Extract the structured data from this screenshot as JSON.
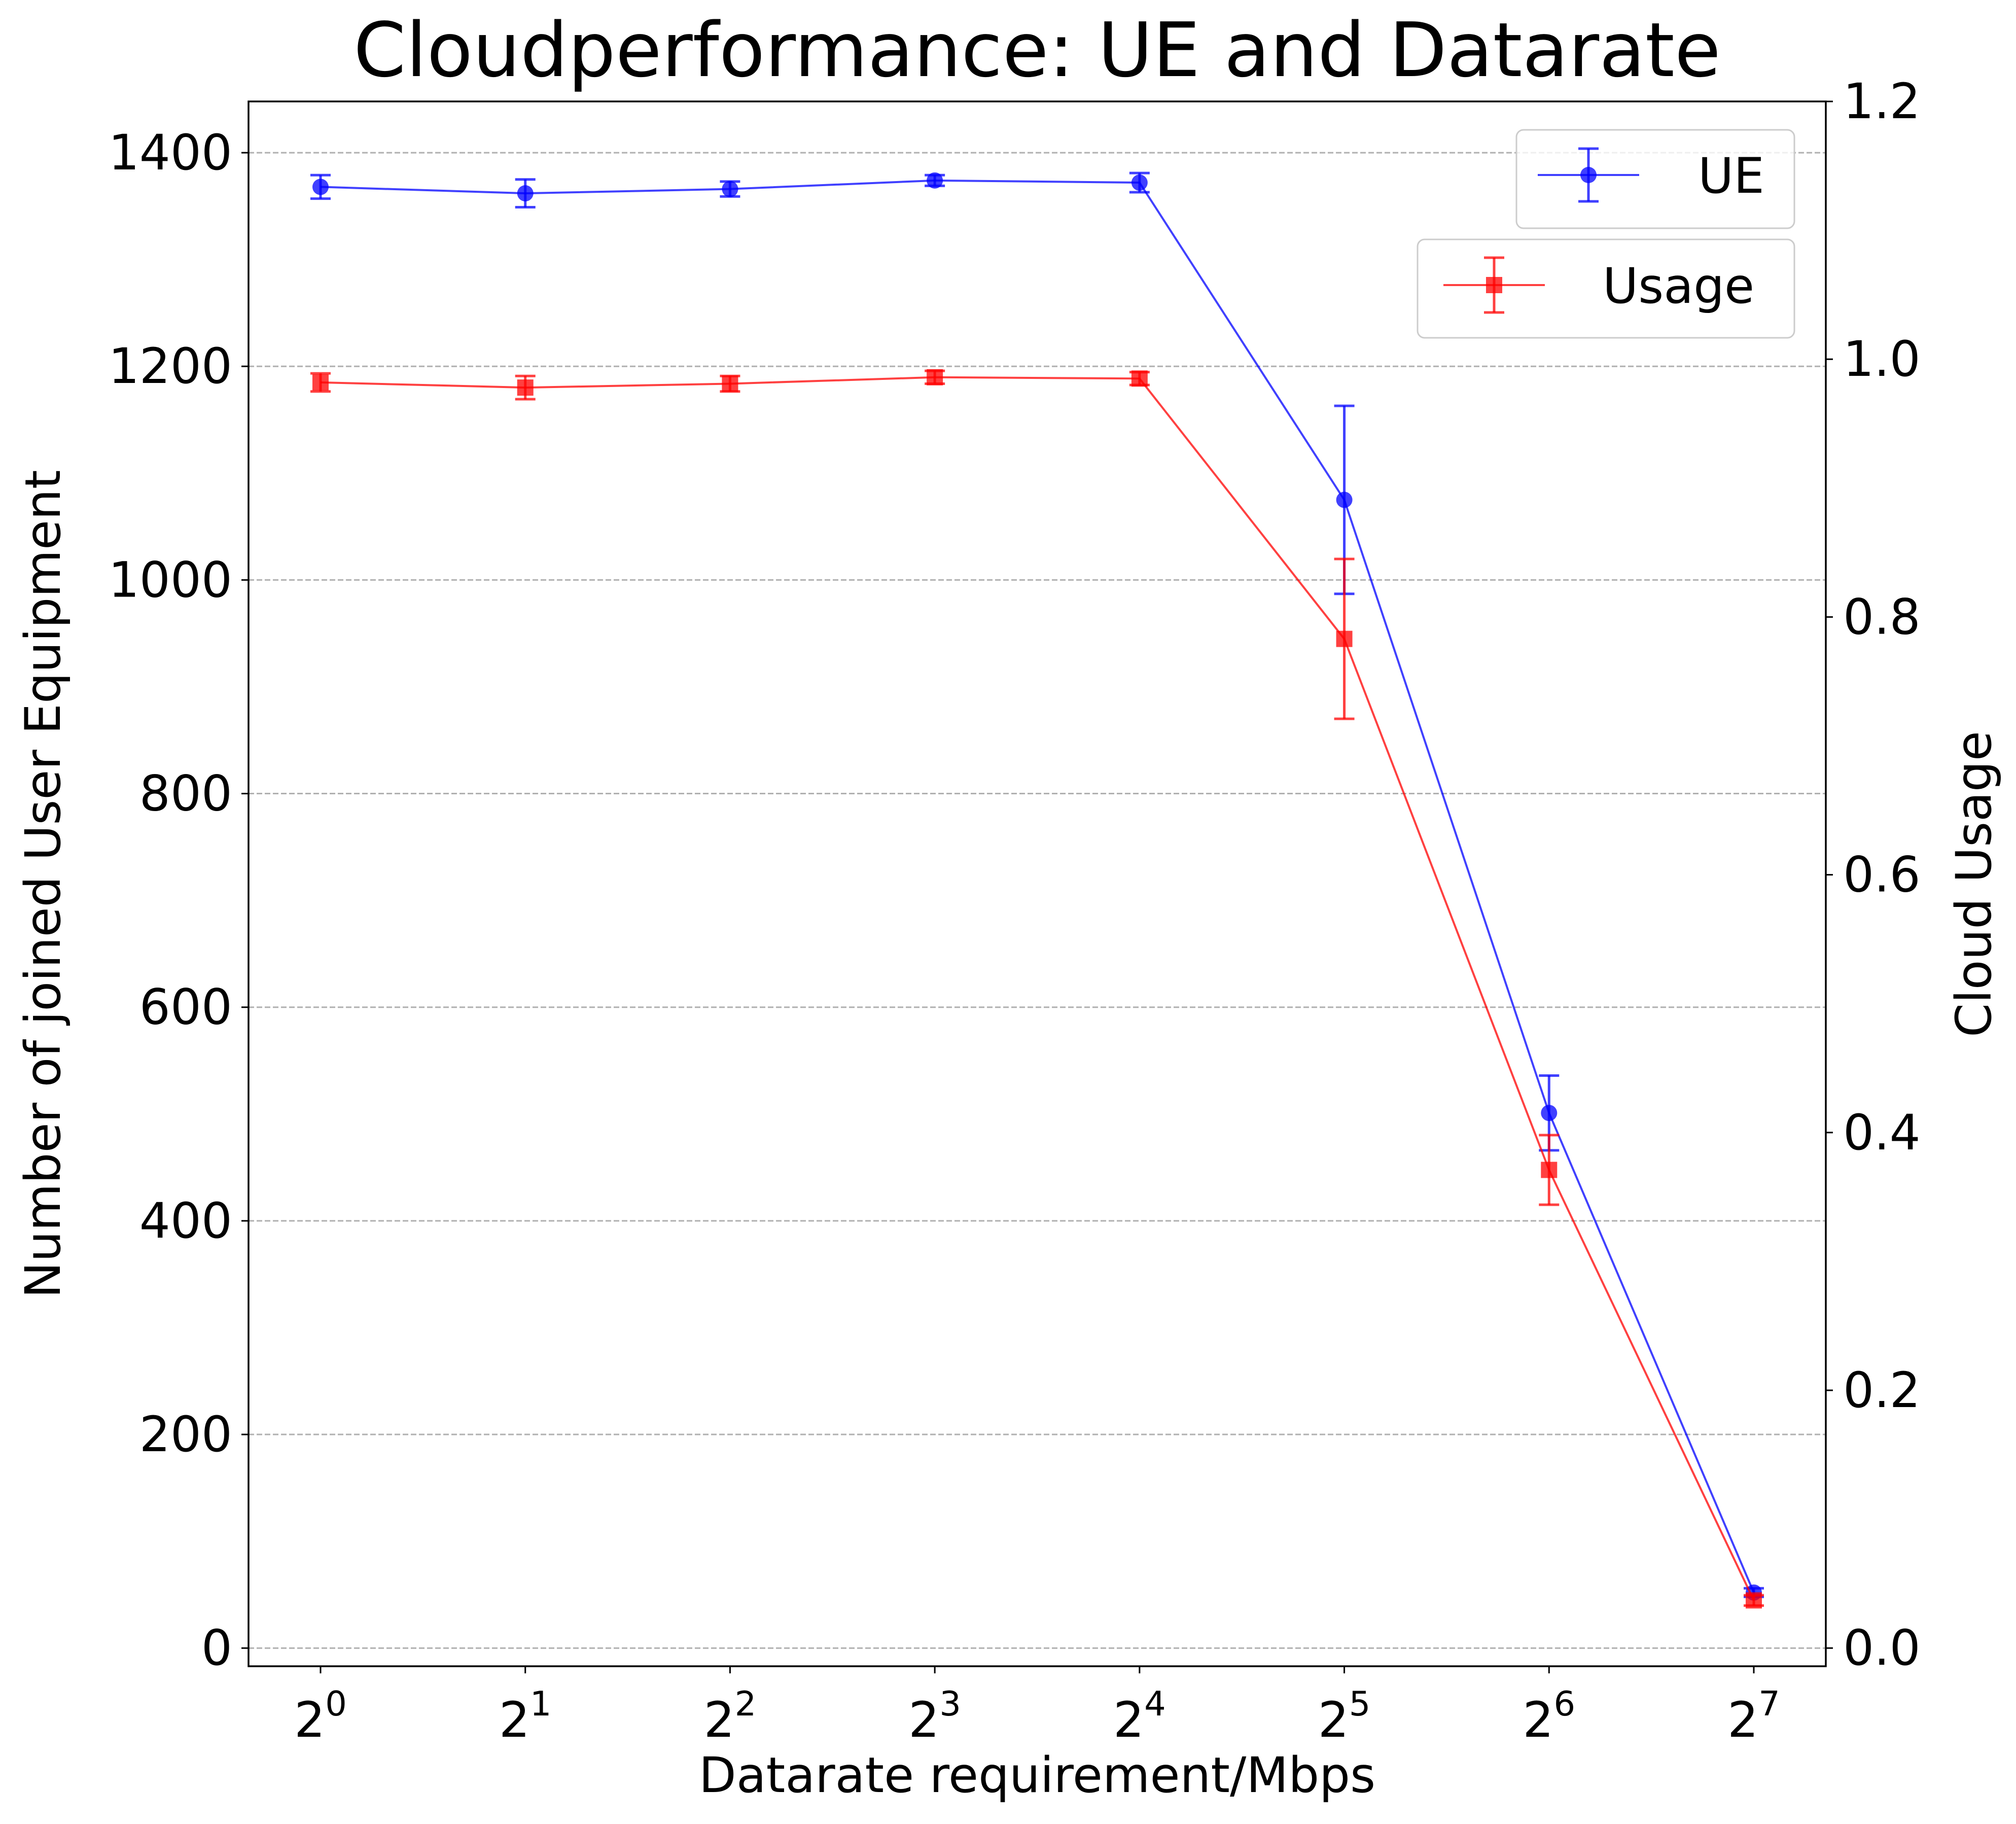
{
  "chart_data": {
    "type": "line",
    "title": "Cloudperformance: UE and Datarate",
    "xlabel": "Datarate requirement/Mbps",
    "ylabel": "Number of joined User Equipment",
    "y2label": "Cloud Usage",
    "x_scale": "log2",
    "x": [
      1,
      2,
      4,
      8,
      16,
      32,
      64,
      128
    ],
    "x_tick_labels": [
      {
        "base": "2",
        "exp": "0"
      },
      {
        "base": "2",
        "exp": "1"
      },
      {
        "base": "2",
        "exp": "2"
      },
      {
        "base": "2",
        "exp": "3"
      },
      {
        "base": "2",
        "exp": "4"
      },
      {
        "base": "2",
        "exp": "5"
      },
      {
        "base": "2",
        "exp": "6"
      },
      {
        "base": "2",
        "exp": "7"
      }
    ],
    "ylim": [
      -17,
      1448
    ],
    "yticks": [
      0,
      200,
      400,
      600,
      800,
      1000,
      1200,
      1400
    ],
    "y_tick_labels": [
      "0",
      "200",
      "400",
      "600",
      "800",
      "1000",
      "1200",
      "1400"
    ],
    "y2lim": [
      -0.0141,
      1.2
    ],
    "y2ticks": [
      0.0,
      0.2,
      0.4,
      0.6,
      0.8,
      1.0,
      1.2
    ],
    "y2_tick_labels": [
      "0.0",
      "0.2",
      "0.4",
      "0.6",
      "0.8",
      "1.0",
      "1.2"
    ],
    "grid": "horizontal-dashed",
    "series": [
      {
        "name": "UE",
        "axis": "left",
        "color": "#0000ff",
        "marker": "circle",
        "values": [
          1368,
          1362,
          1366,
          1374,
          1372,
          1075,
          501,
          52
        ],
        "errors": [
          11,
          13,
          7,
          5,
          9,
          88,
          35,
          4
        ]
      },
      {
        "name": "Usage",
        "axis": "right",
        "color": "#ff0000",
        "marker": "square",
        "values": [
          0.982,
          0.978,
          0.981,
          0.986,
          0.985,
          0.783,
          0.371,
          0.037
        ],
        "errors": [
          0.007,
          0.009,
          0.006,
          0.005,
          0.005,
          0.062,
          0.027,
          0.004
        ]
      }
    ],
    "legend": [
      {
        "label": "UE",
        "placement": "top-right"
      },
      {
        "label": "Usage",
        "placement": "top-right (below UE)"
      }
    ]
  }
}
